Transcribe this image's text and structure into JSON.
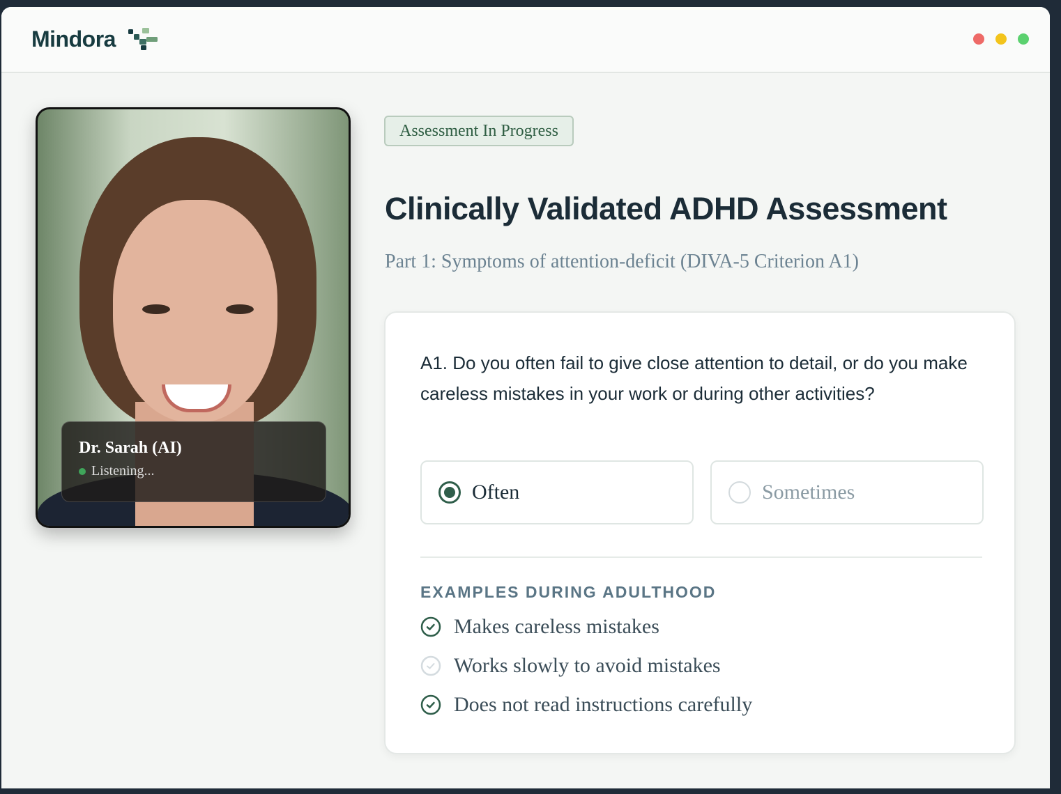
{
  "app": {
    "name": "Mindora",
    "window_controls": [
      "close",
      "minimize",
      "maximize"
    ],
    "colors": {
      "close": "#ee6a67",
      "minimize": "#f3c41c",
      "maximize": "#5bd16f"
    }
  },
  "avatar": {
    "name": "Dr. Sarah (AI)",
    "status": "Listening..."
  },
  "badge": "Assessment In Progress",
  "title": "Clinically Validated ADHD Assessment",
  "subtitle": "Part 1: Symptoms of attention-deficit (DIVA-5 Criterion A1)",
  "question": {
    "text": "A1. Do you often fail to give close attention to detail, or do you make careless mistakes in your work or during other activities?",
    "options": [
      {
        "label": "Often",
        "selected": true
      },
      {
        "label": "Sometimes",
        "selected": false
      }
    ]
  },
  "examples": {
    "heading": "EXAMPLES DURING ADULTHOOD",
    "items": [
      {
        "label": "Makes careless mistakes",
        "checked": true
      },
      {
        "label": "Works slowly to avoid mistakes",
        "checked": false
      },
      {
        "label": "Does not read instructions carefully",
        "checked": true
      }
    ]
  },
  "accent": "#2f5e4a"
}
